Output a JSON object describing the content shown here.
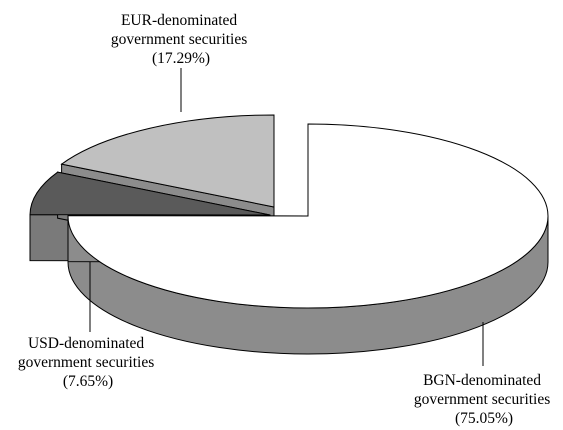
{
  "chart_data": {
    "type": "pie",
    "style": "3d-exploded",
    "title": "",
    "slices": [
      {
        "label_lines": [
          "BGN-denominated",
          "government securities"
        ],
        "value_label": "(75.05%)",
        "value": 75.05,
        "color": "#ffffff",
        "side_color": "#8c8c8c"
      },
      {
        "label_lines": [
          "USD-denominated",
          "government securities"
        ],
        "value_label": "(7.65%)",
        "value": 7.65,
        "color": "#5a5a5a",
        "side_color": "#7a7a7a"
      },
      {
        "label_lines": [
          "EUR-denominated",
          "government securities"
        ],
        "value_label": "(17.29%)",
        "value": 17.29,
        "color": "#c0c0c0",
        "side_color": "#8c8c8c"
      }
    ]
  }
}
